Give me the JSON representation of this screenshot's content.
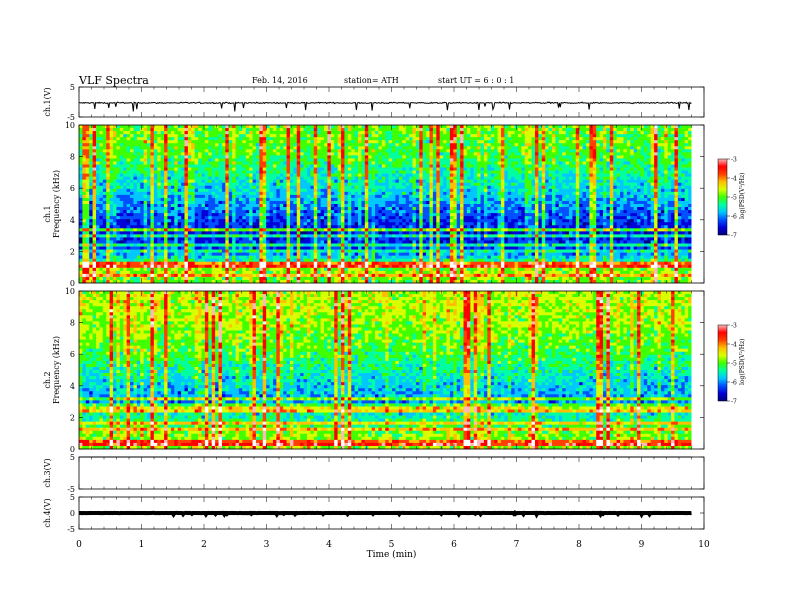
{
  "header": {
    "title": "VLF  Spectra",
    "date": "Feb. 14,  2016",
    "station": "station= ATH",
    "start": "start  UT  =   6  : 0  : 1"
  },
  "colors": {
    "colormap": [
      "#00007a",
      "#0000d8",
      "#0050ff",
      "#00c8ff",
      "#00ffa0",
      "#40ff00",
      "#d8ff00",
      "#ffc000",
      "#ff4000",
      "#ff0000",
      "#ffb8b8",
      "#ffffff"
    ],
    "trace": "#000000",
    "background": "#ffffff"
  },
  "chart_data": [
    {
      "type": "line",
      "ylabel": "ch.1(V)",
      "yticks": [
        "5",
        "-5"
      ],
      "ylim": [
        -5,
        5
      ],
      "xlim": [
        0,
        10
      ],
      "data_xlim": [
        0,
        9.8
      ],
      "description_values": {
        "mean_level": -0.3,
        "noise_amplitude": 0.6
      }
    },
    {
      "type": "heatmap",
      "ylabel": "ch.1\nFrequency  (kHz)",
      "ylabel_line1": "ch.1",
      "ylabel_line2": "Frequency  (kHz)",
      "yticks": [
        "0",
        "2",
        "4",
        "6",
        "8",
        "10"
      ],
      "ylim": [
        0,
        10
      ],
      "xlim": [
        0,
        10
      ],
      "data_xlim": [
        0,
        9.8
      ],
      "colorbar": {
        "label": "log(PSD(V²/Hz)",
        "ticks": [
          "-3",
          "-4",
          "-5",
          "-6",
          "-7"
        ],
        "range": [
          -7,
          -3
        ]
      },
      "profile": [
        {
          "f_khz": 0.0,
          "mean": -5.2
        },
        {
          "f_khz": 1.0,
          "mean": -5.0
        },
        {
          "f_khz": 2.0,
          "mean": -6.3
        },
        {
          "f_khz": 3.0,
          "mean": -6.6
        },
        {
          "f_khz": 4.0,
          "mean": -6.4
        },
        {
          "f_khz": 5.0,
          "mean": -6.1
        },
        {
          "f_khz": 6.0,
          "mean": -5.8
        },
        {
          "f_khz": 8.0,
          "mean": -5.3
        },
        {
          "f_khz": 10.0,
          "mean": -5.1
        }
      ]
    },
    {
      "type": "heatmap",
      "ylabel_line1": "ch.2",
      "ylabel_line2": "Frequency  (kHz)",
      "yticks": [
        "0",
        "2",
        "4",
        "6",
        "8",
        "10"
      ],
      "ylim": [
        0,
        10
      ],
      "xlim": [
        0,
        10
      ],
      "data_xlim": [
        0,
        9.8
      ],
      "colorbar": {
        "label": "log(PSD(V²/Hz)",
        "ticks": [
          "-3",
          "-4",
          "-5",
          "-6",
          "-7"
        ],
        "range": [
          -7,
          -3
        ]
      },
      "profile": [
        {
          "f_khz": 0.0,
          "mean": -5.0
        },
        {
          "f_khz": 1.0,
          "mean": -5.1
        },
        {
          "f_khz": 2.0,
          "mean": -5.6
        },
        {
          "f_khz": 3.0,
          "mean": -6.1
        },
        {
          "f_khz": 4.0,
          "mean": -5.9
        },
        {
          "f_khz": 6.0,
          "mean": -5.3
        },
        {
          "f_khz": 8.0,
          "mean": -5.0
        },
        {
          "f_khz": 10.0,
          "mean": -4.9
        }
      ]
    },
    {
      "type": "line",
      "ylabel": "ch.3(V)",
      "yticks": [
        "5",
        "-5"
      ],
      "ylim": [
        -5,
        5
      ],
      "xlim": [
        0,
        10
      ],
      "data_xlim": [
        0,
        9.8
      ],
      "description_values": {
        "mean_level": 5.0,
        "noise_amplitude": 0.0
      }
    },
    {
      "type": "line",
      "ylabel": "ch.4(V)",
      "yticks": [
        "5",
        "0",
        "-5"
      ],
      "ylim": [
        -5,
        5
      ],
      "xlim": [
        0,
        10
      ],
      "data_xlim": [
        0,
        9.8
      ],
      "description_values": {
        "mean_level": 0.0,
        "noise_amplitude": 0.1
      }
    }
  ],
  "xaxis": {
    "label": "Time  (min)",
    "ticks": [
      "0",
      "1",
      "2",
      "3",
      "4",
      "5",
      "6",
      "7",
      "8",
      "9",
      "10"
    ]
  }
}
